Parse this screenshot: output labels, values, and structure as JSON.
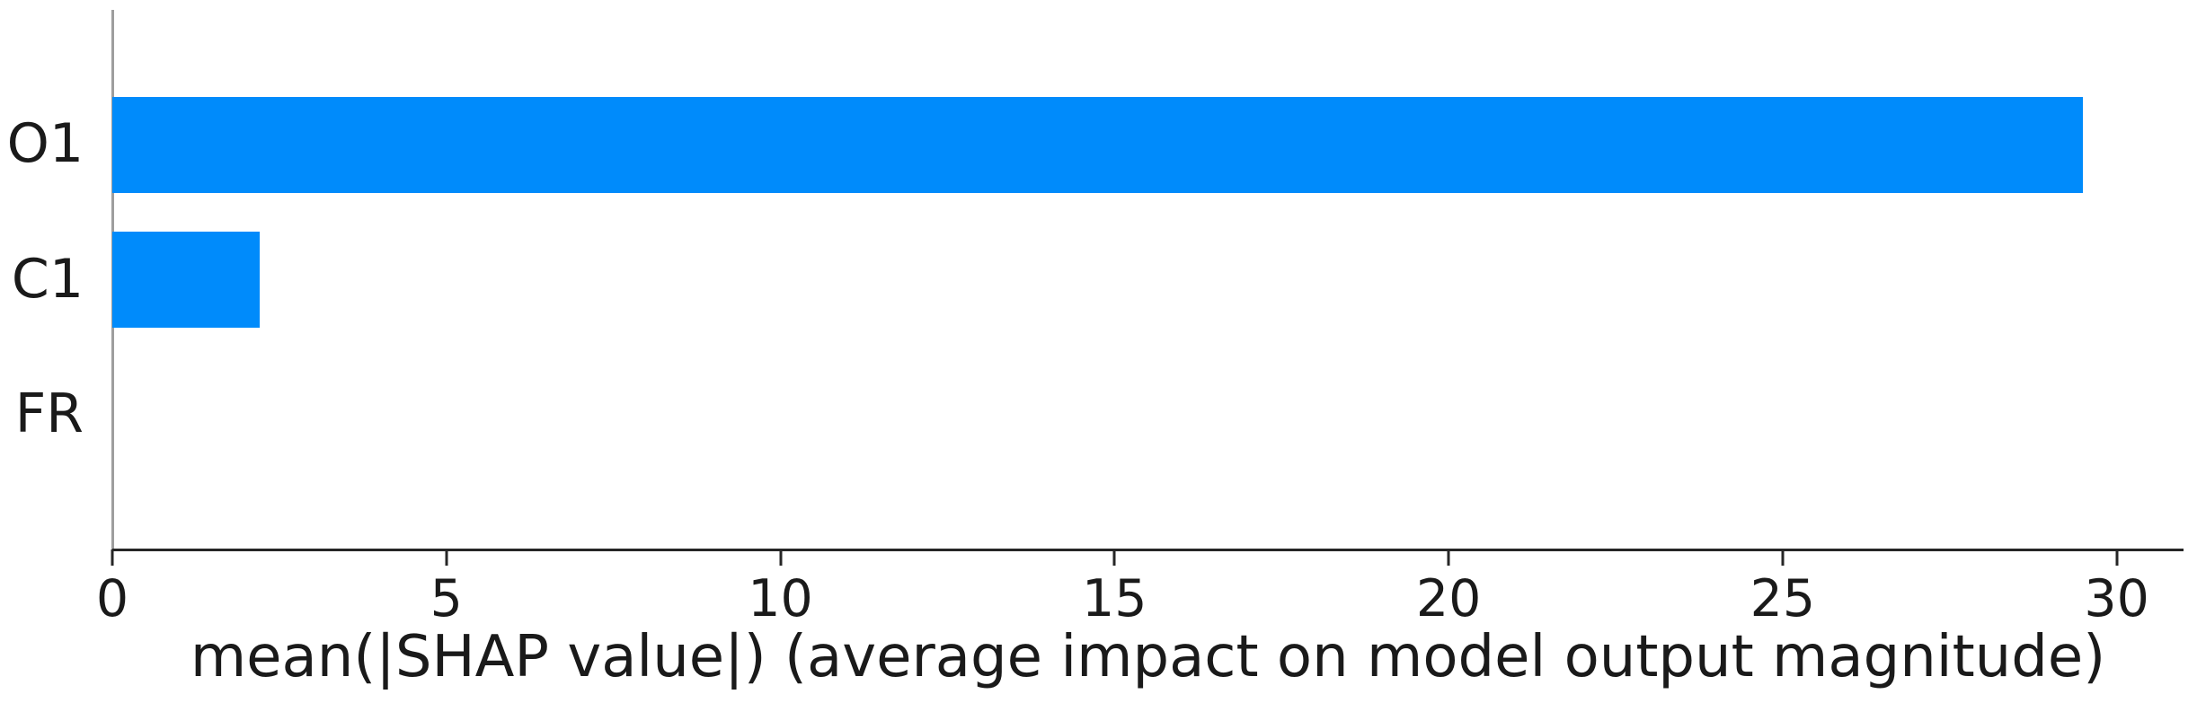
{
  "chart_data": {
    "type": "bar",
    "orientation": "horizontal",
    "title": "",
    "xlabel": "mean(|SHAP value|) (average impact on model output magnitude)",
    "ylabel": "",
    "categories": [
      "O1",
      "C1",
      "FR"
    ],
    "values": [
      29.5,
      2.2,
      0
    ],
    "x_ticks": [
      "0",
      "5",
      "10",
      "15",
      "20",
      "25",
      "30"
    ],
    "x_tick_values": [
      0,
      5,
      10,
      15,
      20,
      25,
      30
    ],
    "xlim": [
      0,
      31
    ],
    "grid": false,
    "legend": false,
    "bar_height_fraction": 0.71,
    "colors": {
      "bar": "#008bfb",
      "axis": "#262626",
      "zero_baseline": "#9e9e9e",
      "text": "#1a1a1a"
    }
  }
}
